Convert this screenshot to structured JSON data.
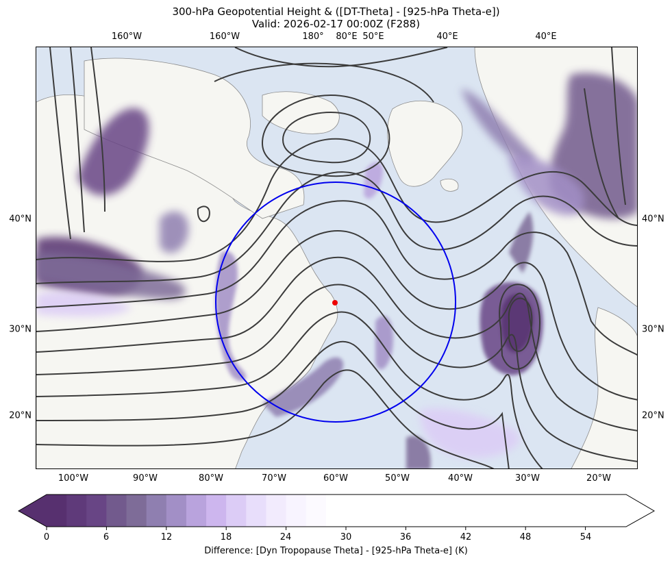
{
  "title": {
    "line1": "300-hPa Geopotential Height & ([DT-Theta] - [925-hPa Theta-e])",
    "line2": "Valid: 2026-02-17 00:00Z (F288)"
  },
  "top_lon_labels": [
    "160°W",
    "160°W",
    "180°",
    "80°E",
    "50°E",
    "40°E",
    "40°E"
  ],
  "bottom_lon_labels": [
    "100°W",
    "90°W",
    "80°W",
    "70°W",
    "60°W",
    "50°W",
    "40°W",
    "30°W",
    "20°W"
  ],
  "left_lat_labels": [
    "40°N",
    "30°N",
    "20°N"
  ],
  "right_lat_labels": [
    "40°N",
    "30°N",
    "20°N"
  ],
  "colorbar": {
    "label": "Difference: [Dyn Tropopause Theta] - [925-hPa Theta-e] (K)",
    "ticks": [
      "0",
      "6",
      "12",
      "18",
      "24",
      "30",
      "36",
      "42",
      "48",
      "54"
    ],
    "min": -2,
    "max": 60,
    "step": 2,
    "shaded_colors": [
      "#57306f",
      "#5f3a7a",
      "#684585",
      "#725a8d",
      "#7e6c98",
      "#8f7fb0",
      "#a28fc6",
      "#b9a3dd",
      "#cdb6ee",
      "#dcccf6",
      "#e8defb",
      "#f2ebfd",
      "#f8f4ff",
      "#fcfaff"
    ]
  },
  "map": {
    "ocean_color": "#dbe5f2",
    "land_color": "#f6f6f2",
    "contour_color": "#3b3b3b",
    "circle_color": "#0000ee",
    "marker_color": "#ee0000"
  }
}
